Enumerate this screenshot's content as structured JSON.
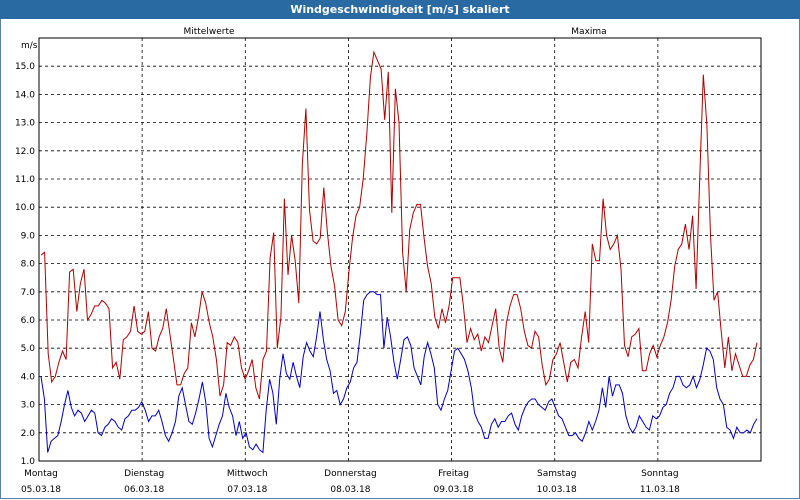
{
  "title": "Windgeschwindigkeit [m/s] skaliert",
  "chart_data": {
    "type": "line",
    "ylabel": "m/s",
    "ylim": [
      1.0,
      16.0
    ],
    "yticks": [
      "1.0",
      "2.0",
      "3.0",
      "4.0",
      "5.0",
      "6.0",
      "7.0",
      "8.0",
      "9.0",
      "10.0",
      "11.0",
      "12.0",
      "13.0",
      "14.0",
      "15.0"
    ],
    "xlim": [
      0,
      7
    ],
    "xticks": [
      {
        "day": "Montag",
        "date": "05.03.18"
      },
      {
        "day": "Dienstag",
        "date": "06.03.18"
      },
      {
        "day": "Mittwoch",
        "date": "07.03.18"
      },
      {
        "day": "Donnerstag",
        "date": "08.03.18"
      },
      {
        "day": "Freitag",
        "date": "09.03.18"
      },
      {
        "day": "Samstag",
        "date": "10.03.18"
      },
      {
        "day": "Sonntag",
        "date": "11.03.18"
      }
    ],
    "grid": true,
    "series": [
      {
        "name": "Mittelwerte",
        "color": "#0000c0",
        "values": [
          4.0,
          3.2,
          1.3,
          1.7,
          1.8,
          1.9,
          2.4,
          3.0,
          3.5,
          2.9,
          2.6,
          2.8,
          2.7,
          2.4,
          2.6,
          2.8,
          2.7,
          2.0,
          1.9,
          2.2,
          2.3,
          2.5,
          2.4,
          2.2,
          2.1,
          2.5,
          2.6,
          2.8,
          2.8,
          2.9,
          3.1,
          2.8,
          2.4,
          2.6,
          2.6,
          2.8,
          2.4,
          1.9,
          1.7,
          2.0,
          2.4,
          3.3,
          3.6,
          3.0,
          2.4,
          2.3,
          2.7,
          3.2,
          3.8,
          3.1,
          1.8,
          1.5,
          1.9,
          2.3,
          2.6,
          3.4,
          2.9,
          2.6,
          1.9,
          2.4,
          1.8,
          2.0,
          1.5,
          1.4,
          1.6,
          1.4,
          1.3,
          2.8,
          3.9,
          3.4,
          2.3,
          3.9,
          4.8,
          4.1,
          3.9,
          4.5,
          4.0,
          3.6,
          4.7,
          5.2,
          4.9,
          4.7,
          5.4,
          6.3,
          5.3,
          4.6,
          4.2,
          3.4,
          3.5,
          3.0,
          3.2,
          3.6,
          3.8,
          4.3,
          4.5,
          5.5,
          6.7,
          6.9,
          7.0,
          7.0,
          6.9,
          6.9,
          5.0,
          6.1,
          5.4,
          4.5,
          3.9,
          4.6,
          5.3,
          5.4,
          5.1,
          4.3,
          4.0,
          3.7,
          4.7,
          5.2,
          4.8,
          4.3,
          3.0,
          2.8,
          3.2,
          3.5,
          4.2,
          4.9,
          5.0,
          4.8,
          4.6,
          4.2,
          3.6,
          2.7,
          2.4,
          2.2,
          1.8,
          1.8,
          2.3,
          2.5,
          2.2,
          2.4,
          2.4,
          2.6,
          2.7,
          2.3,
          2.1,
          2.6,
          2.9,
          3.1,
          3.2,
          3.2,
          3.0,
          2.9,
          2.8,
          3.1,
          3.2,
          2.9,
          2.6,
          2.5,
          2.2,
          1.9,
          1.9,
          2.0,
          1.8,
          1.7,
          2.0,
          2.4,
          2.1,
          2.4,
          2.8,
          3.6,
          2.9,
          4.0,
          3.3,
          3.7,
          3.7,
          3.4,
          2.6,
          2.2,
          2.0,
          2.2,
          2.6,
          2.4,
          2.2,
          2.1,
          2.6,
          2.5,
          2.6,
          2.9,
          3.0,
          3.4,
          3.6,
          4.0,
          4.0,
          3.7,
          3.6,
          3.7,
          4.0,
          3.6,
          3.9,
          4.4,
          5.0,
          4.9,
          4.6,
          3.6,
          3.2,
          3.0,
          2.2,
          2.1,
          1.8,
          2.2,
          2.0,
          2.0,
          2.1,
          2.0,
          2.3,
          2.5
        ]
      },
      {
        "name": "Maxima",
        "color": "#b00000",
        "values": [
          8.3,
          8.4,
          4.8,
          3.8,
          4.0,
          4.5,
          4.9,
          4.6,
          7.7,
          7.8,
          6.3,
          7.3,
          7.8,
          6.0,
          6.2,
          6.5,
          6.5,
          6.7,
          6.6,
          6.4,
          4.3,
          4.5,
          3.9,
          5.3,
          5.4,
          5.6,
          6.5,
          5.6,
          5.5,
          5.6,
          6.3,
          5.0,
          4.9,
          5.4,
          5.7,
          6.4,
          5.5,
          4.6,
          3.7,
          3.7,
          4.1,
          4.3,
          5.9,
          5.4,
          6.1,
          7.0,
          6.6,
          5.9,
          5.4,
          4.6,
          3.3,
          3.7,
          5.2,
          5.1,
          5.4,
          5.2,
          4.3,
          3.9,
          4.2,
          4.6,
          3.6,
          3.2,
          4.6,
          4.9,
          8.2,
          9.1,
          5.0,
          6.1,
          10.3,
          7.6,
          9.0,
          8.1,
          6.6,
          11.5,
          13.5,
          9.9,
          8.8,
          8.7,
          8.9,
          10.7,
          9.1,
          7.9,
          7.2,
          6.0,
          5.8,
          6.3,
          7.7,
          8.9,
          9.7,
          10.0,
          11.0,
          12.6,
          14.6,
          15.5,
          15.2,
          14.9,
          13.1,
          14.8,
          9.8,
          14.2,
          13.0,
          8.4,
          7.0,
          9.2,
          9.8,
          10.1,
          10.1,
          8.9,
          7.9,
          7.3,
          6.1,
          5.7,
          6.4,
          5.9,
          6.5,
          7.5,
          7.5,
          7.5,
          6.5,
          5.2,
          5.7,
          5.3,
          5.5,
          4.9,
          5.4,
          5.2,
          5.8,
          6.4,
          5.0,
          4.5,
          5.9,
          6.5,
          6.9,
          6.9,
          6.4,
          5.6,
          5.1,
          5.0,
          5.6,
          5.4,
          4.4,
          3.7,
          3.9,
          4.6,
          4.8,
          5.2,
          4.5,
          3.8,
          4.5,
          4.6,
          4.3,
          5.4,
          6.3,
          5.2,
          8.7,
          8.1,
          8.1,
          10.3,
          9.0,
          8.5,
          8.7,
          9.0,
          7.8,
          5.1,
          4.7,
          5.4,
          5.5,
          5.7,
          4.2,
          4.2,
          4.8,
          5.1,
          4.7,
          5.1,
          5.4,
          5.9,
          6.7,
          7.9,
          8.5,
          8.7,
          9.4,
          8.5,
          9.7,
          7.1,
          11.0,
          14.7,
          12.9,
          9.0,
          6.7,
          7.0,
          5.6,
          4.3,
          5.4,
          4.2,
          4.8,
          4.4,
          4.0,
          4.0,
          4.4,
          4.6,
          5.2
        ]
      }
    ]
  }
}
